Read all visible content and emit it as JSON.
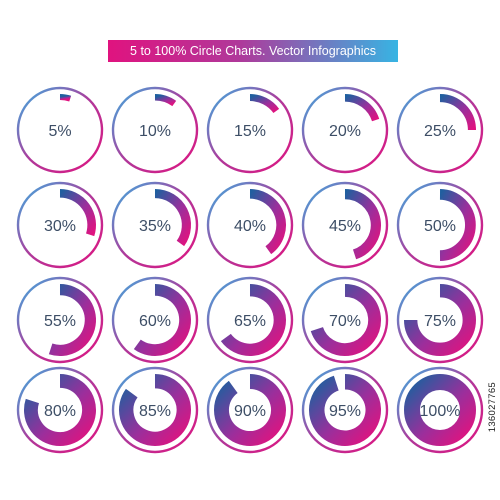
{
  "title": "5 to 100% Circle Charts. Vector Infographics",
  "colors": {
    "gradient_start": "#e0137f",
    "gradient_mid": "#b0389a",
    "gradient_end": "#37b4e3",
    "arc_dark": "#1f5f9f",
    "label": "#3d4e66"
  },
  "watermark_id": "136027765",
  "chart_data": {
    "type": "pie",
    "style": "donut-progress-grid",
    "title": "5 to 100% Circle Charts. Vector Infographics",
    "rows": 4,
    "columns": 5,
    "values": [
      5,
      10,
      15,
      20,
      25,
      30,
      35,
      40,
      45,
      50,
      55,
      60,
      65,
      70,
      75,
      80,
      85,
      90,
      95,
      100
    ],
    "labels": [
      "5%",
      "10%",
      "15%",
      "20%",
      "25%",
      "30%",
      "35%",
      "40%",
      "45%",
      "50%",
      "55%",
      "60%",
      "65%",
      "70%",
      "75%",
      "80%",
      "85%",
      "90%",
      "95%",
      "100%"
    ],
    "unit": "%",
    "max": 100
  }
}
